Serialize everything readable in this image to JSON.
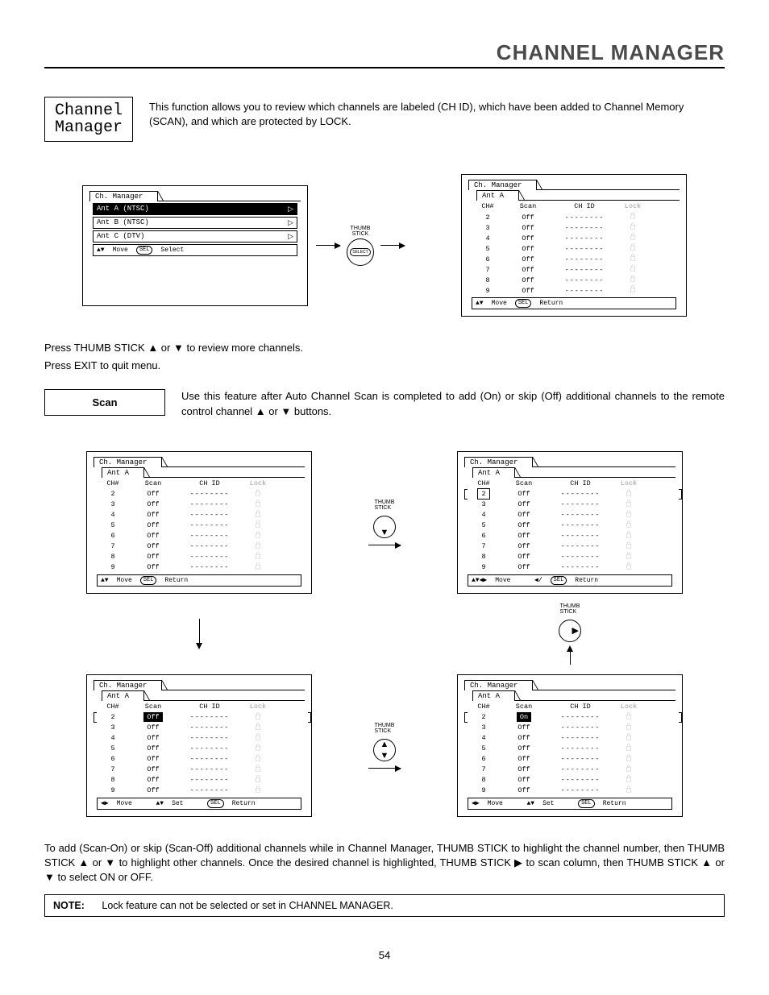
{
  "page": {
    "title_upper": "CHANNEL MANAGER",
    "label_box": "Channel\nManager",
    "intro": "This function allows you to review which channels are labeled (CH ID), which have been added to Channel Memory (SCAN), and which are protected by LOCK.",
    "number": "54"
  },
  "panel_menu": {
    "tab": "Ch. Manager",
    "items": [
      {
        "label": "Ant A (NTSC)",
        "selected": true
      },
      {
        "label": "Ant B (NTSC)",
        "selected": false
      },
      {
        "label": "Ant C (DTV)",
        "selected": false
      }
    ],
    "footer_move": "Move",
    "footer_sel": "Select",
    "footer_pill": "SEL"
  },
  "connector": {
    "thumb": "THUMB\nSTICK",
    "select": "SELECT"
  },
  "table_defaults": {
    "tab": "Ch. Manager",
    "subtab": "Ant A",
    "headers": {
      "ch": "CH#",
      "scan": "Scan",
      "id": "CH ID",
      "lock": "Lock"
    },
    "rows": [
      {
        "ch": "2",
        "scan": "Off",
        "id": "--------"
      },
      {
        "ch": "3",
        "scan": "Off",
        "id": "--------"
      },
      {
        "ch": "4",
        "scan": "Off",
        "id": "--------"
      },
      {
        "ch": "5",
        "scan": "Off",
        "id": "--------"
      },
      {
        "ch": "6",
        "scan": "Off",
        "id": "--------"
      },
      {
        "ch": "7",
        "scan": "Off",
        "id": "--------"
      },
      {
        "ch": "8",
        "scan": "Off",
        "id": "--------"
      },
      {
        "ch": "9",
        "scan": "Off",
        "id": "--------"
      }
    ],
    "footer_return_pill": "SEL",
    "footer_return": "Return",
    "footer_move": "Move",
    "footer_set": "Set"
  },
  "instr": {
    "line1": "Press THUMB STICK ▲ or ▼ to review more channels.",
    "line2": "Press EXIT to quit menu."
  },
  "scan": {
    "label": "Scan",
    "text": "Use this feature after Auto Channel Scan is completed to add (On) or skip (Off) additional channels to the remote control channel ▲ or ▼ buttons."
  },
  "bottom_instr": "To add (Scan-On) or skip (Scan-Off) additional channels while in Channel Manager, THUMB STICK to highlight the channel number, then THUMB STICK ▲ or ▼ to highlight other channels.  Once the desired channel is highlighted, THUMB STICK ▶ to scan column, then THUMB STICK ▲ or ▼ to select ON or OFF.",
  "note": {
    "label": "NOTE:",
    "text": "Lock feature can not be selected or set in CHANNEL MANAGER."
  },
  "scan_on": "On",
  "scan_off": "Off"
}
